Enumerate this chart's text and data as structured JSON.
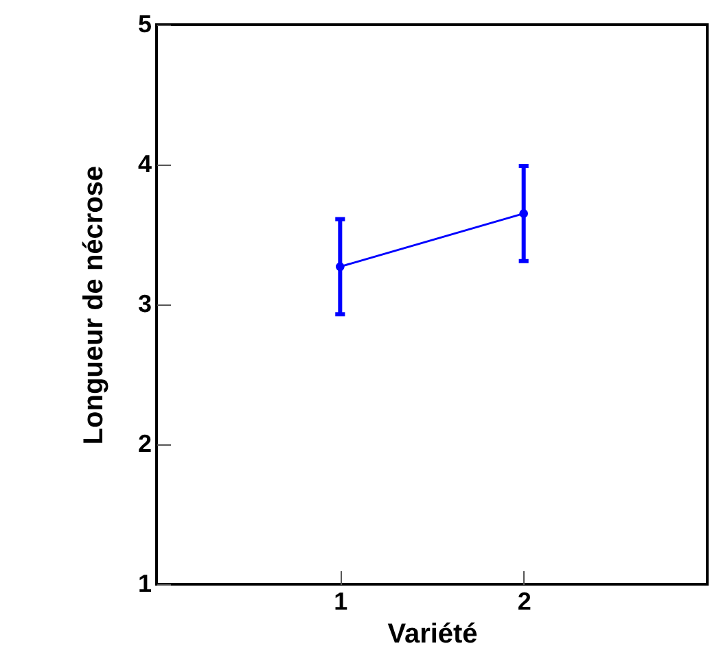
{
  "chart_data": {
    "type": "line",
    "xlabel": "Variété",
    "ylabel": "Longueur de nécrose",
    "x": [
      1,
      2
    ],
    "series": [
      {
        "color": "#0000ff",
        "values": [
          3.27,
          3.65
        ],
        "errors": [
          0.34,
          0.34
        ]
      }
    ],
    "xlim": [
      0,
      3
    ],
    "xticks": [
      1,
      2
    ],
    "ylim": [
      1,
      5
    ],
    "yticks": [
      1,
      2,
      3,
      4,
      5
    ],
    "marker": "circle",
    "line_style": "solid"
  }
}
